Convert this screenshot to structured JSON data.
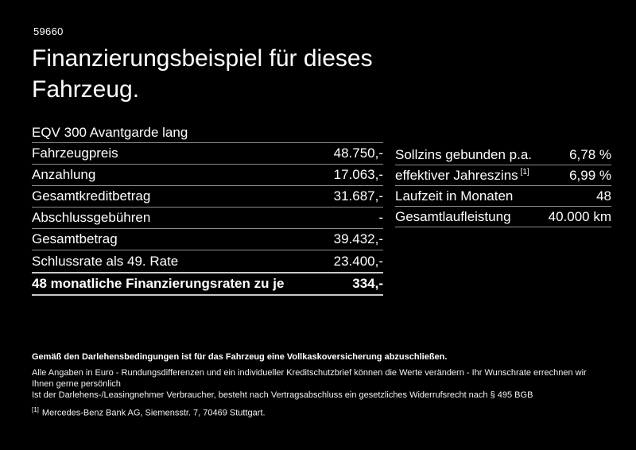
{
  "colors": {
    "background": "#000000",
    "text": "#ffffff",
    "divider": "#8d8d8d",
    "highlight_divider": "#c9c9c9"
  },
  "header": {
    "doc_number": "59660",
    "title_line1": "Finanzierungsbeispiel für dieses",
    "title_line2": "Fahrzeug."
  },
  "finance_table": {
    "model_row": "EQV 300 Avantgarde lang",
    "rows": [
      {
        "label": "Fahrzeugpreis",
        "value": "48.750,-"
      },
      {
        "label": "Anzahlung",
        "value": "17.063,-"
      },
      {
        "label": "Gesamtkreditbetrag",
        "value": "31.687,-"
      },
      {
        "label": "Abschlussgebühren",
        "value": "-"
      },
      {
        "label": "Gesamtbetrag",
        "value": "39.432,-"
      },
      {
        "label": "Schlussrate als 49. Rate",
        "value": "23.400,-"
      }
    ],
    "highlight_row": {
      "label": "48 monatliche Finanzierungsraten zu je",
      "value": "334,-"
    }
  },
  "conditions_table": {
    "rows": [
      {
        "label": "Sollzins gebunden p.a.",
        "value": "6,78 %"
      },
      {
        "label": "effektiver Jahreszins",
        "label_sup": "[1]",
        "value": "6,99 %"
      },
      {
        "label": "Laufzeit in Monaten",
        "value": "48"
      },
      {
        "label": "Gesamtlaufleistung",
        "value": "40.000 km"
      }
    ]
  },
  "footer": {
    "bold_note": "Gemäß den Darlehensbedingungen ist für das Fahrzeug eine Vollkaskoversicherung abzuschließen.",
    "note1": "Alle Angaben in Euro - Rundungsdifferenzen und ein individueller Kreditschutzbrief können die Werte verändern - Ihr Wunschrate errechnen wir Ihnen gerne persönlich",
    "note2": "Ist der Darlehens-/Leasingnehmer Verbraucher, besteht nach Vertragsabschluss ein gesetzliches Widerrufsrecht nach § 495 BGB",
    "footnote_marker": "[1]",
    "footnote_text": "Mercedes-Benz Bank AG, Siemensstr. 7, 70469 Stuttgart."
  }
}
